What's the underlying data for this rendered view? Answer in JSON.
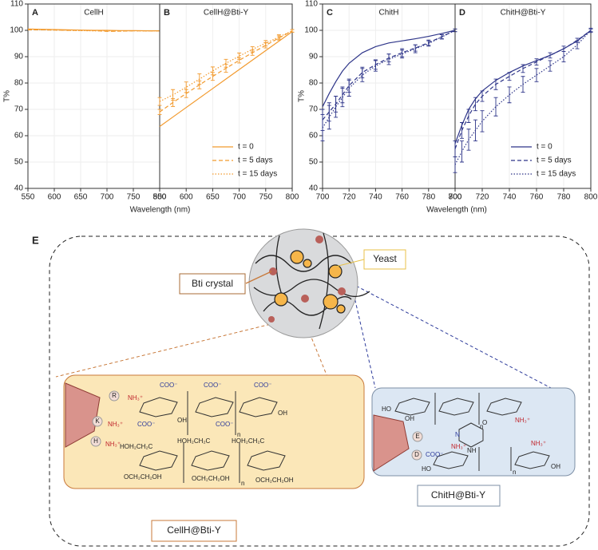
{
  "chart_data": [
    {
      "type": "line",
      "label": "A",
      "title": "CellH",
      "xlabel": "Wavelength (nm)",
      "ylabel": "T%",
      "xlim": [
        550,
        800
      ],
      "ylim": [
        40,
        110
      ],
      "xticks": [
        550,
        600,
        650,
        700,
        750,
        800
      ],
      "yticks": [
        40,
        50,
        60,
        70,
        80,
        90,
        100,
        110
      ],
      "grid": true,
      "x": [
        550,
        575,
        600,
        625,
        650,
        675,
        700,
        725,
        750,
        775,
        800
      ],
      "series": [
        {
          "color": "#f29a2e",
          "dash": "solid",
          "values": [
            100.5,
            100.4,
            100.3,
            100.2,
            100.1,
            100,
            100,
            99.9,
            99.9,
            99.8,
            99.8
          ]
        },
        {
          "color": "#f29a2e",
          "dash": "dashed",
          "values": [
            100.2,
            100.2,
            100.1,
            100,
            100,
            99.9,
            99.6,
            99.7,
            99.8,
            99.8,
            99.8
          ]
        },
        {
          "color": "#f29a2e",
          "dash": "dotted",
          "values": [
            100.3,
            100.2,
            100.1,
            100,
            99.9,
            99.8,
            99.8,
            99.7,
            99.8,
            99.8,
            99.8
          ]
        }
      ]
    },
    {
      "type": "line",
      "label": "B",
      "title": "CellH@Bti-Y",
      "xlim": [
        550,
        800
      ],
      "ylim": [
        40,
        110
      ],
      "xticks": [
        550,
        600,
        650,
        700,
        750,
        800
      ],
      "grid": true,
      "legend": "lower right",
      "x": [
        550,
        575,
        600,
        625,
        650,
        675,
        700,
        725,
        750,
        775,
        800
      ],
      "series": [
        {
          "name": "t = 0",
          "color": "#f29a2e",
          "dash": "solid",
          "values": [
            63.5,
            67.1,
            70.7,
            74.3,
            77.9,
            81.5,
            85.1,
            88.7,
            92.3,
            95.9,
            99.5
          ]
        },
        {
          "name": "t = 5 days",
          "color": "#f29a2e",
          "dash": "dashed",
          "values": [
            69,
            72.6,
            76,
            79.3,
            82.5,
            85.6,
            88.6,
            91.5,
            94.3,
            97.1,
            99.8
          ],
          "errors": [
            1,
            1.5,
            1.5,
            1.5,
            1.5,
            1.5,
            1,
            1,
            1,
            0.8,
            0.5
          ]
        },
        {
          "name": "t = 15 days",
          "color": "#f29a2e",
          "dash": "dotted",
          "values": [
            73,
            75.5,
            78.4,
            81.5,
            84.6,
            87.5,
            90.2,
            92.8,
            95.1,
            97.5,
            99.8
          ],
          "errors": [
            1.5,
            2,
            2,
            2,
            1.5,
            1.5,
            1.2,
            1,
            1,
            0.8,
            0.5
          ]
        }
      ]
    },
    {
      "type": "line",
      "label": "C",
      "title": "ChitH",
      "xlabel": "Wavelength (nm)",
      "ylabel": "T%",
      "xlim": [
        700,
        800
      ],
      "ylim": [
        40,
        110
      ],
      "xticks": [
        700,
        720,
        740,
        760,
        780,
        800
      ],
      "yticks": [
        40,
        50,
        60,
        70,
        80,
        90,
        100,
        110
      ],
      "grid": true,
      "x": [
        700,
        705,
        710,
        715,
        720,
        730,
        740,
        750,
        760,
        770,
        780,
        790,
        800
      ],
      "series": [
        {
          "color": "#2e3589",
          "dash": "solid",
          "values": [
            71,
            76,
            80.5,
            84.5,
            87.5,
            91.5,
            93.8,
            95.2,
            96,
            96.8,
            97.7,
            98.8,
            100
          ]
        },
        {
          "color": "#2e3589",
          "dash": "dashed",
          "values": [
            66,
            69,
            72,
            75.5,
            79,
            84,
            87,
            89.5,
            91.5,
            93.3,
            95.3,
            97.6,
            100
          ],
          "errors": [
            4,
            3.5,
            3,
            3,
            2.5,
            2,
            1.8,
            1.5,
            1.5,
            1.2,
            1,
            0.8,
            0.5
          ]
        },
        {
          "color": "#2e3589",
          "dash": "dotted",
          "values": [
            63,
            67,
            71,
            74.5,
            78,
            83,
            86.5,
            89,
            91,
            93,
            95,
            97.5,
            100
          ],
          "errors": [
            5,
            4.5,
            4,
            3.5,
            3,
            2.5,
            2,
            2,
            1.5,
            1.5,
            1,
            0.8,
            0.5
          ]
        }
      ]
    },
    {
      "type": "line",
      "label": "D",
      "title": "ChitH@Bti-Y",
      "xlim": [
        700,
        800
      ],
      "ylim": [
        40,
        110
      ],
      "xticks": [
        700,
        720,
        740,
        760,
        780,
        800
      ],
      "grid": true,
      "legend": "lower right",
      "x": [
        700,
        705,
        710,
        715,
        720,
        730,
        740,
        750,
        760,
        770,
        780,
        790,
        800
      ],
      "series": [
        {
          "name": "t = 0",
          "color": "#2e3589",
          "dash": "solid",
          "values": [
            57,
            64,
            70,
            74,
            77,
            81,
            84,
            86.5,
            88.5,
            90.5,
            93,
            96,
            100
          ]
        },
        {
          "name": "t = 5 days",
          "color": "#2e3589",
          "dash": "dashed",
          "values": [
            55,
            62,
            67.5,
            72,
            75,
            79.5,
            82.5,
            85.5,
            88,
            90.5,
            93,
            96.2,
            100
          ],
          "errors": [
            3,
            3,
            2.5,
            2.5,
            2,
            2,
            1.5,
            1.5,
            1.2,
            1,
            1,
            0.8,
            0.5
          ]
        },
        {
          "name": "t = 15 days",
          "color": "#2e3589",
          "dash": "dotted",
          "values": [
            49,
            54,
            58.5,
            62,
            65.5,
            71,
            75.5,
            79.5,
            83,
            86.5,
            90,
            94.5,
            100
          ],
          "errors": [
            3,
            4,
            4,
            4,
            4,
            3.5,
            3,
            3,
            2.5,
            2,
            2,
            1.5,
            0.8
          ]
        }
      ]
    }
  ],
  "diagram": {
    "label": "E",
    "bti_crystal": "Bti crystal",
    "yeast": "Yeast",
    "cellh": {
      "title": "CellH@Bti-Y",
      "residues": [
        "R",
        "K",
        "H"
      ],
      "labels": [
        "NH₃⁺",
        "NH₃⁺",
        "NH₃⁺",
        "COO⁻",
        "COO⁻",
        "COO⁻",
        "COO⁻",
        "COO⁻",
        "OH",
        "OH",
        "HOH₂CH₂C",
        "HOH₂CH₂C",
        "HOH₂CH₂C",
        "OCH₂CH₂OH",
        "OCH₂CH₂OH",
        "OCH₂CH₂OH",
        "n",
        "n"
      ]
    },
    "chith": {
      "title": "ChitH@Bti-Y",
      "residues": [
        "E",
        "D"
      ],
      "labels": [
        "COO⁻",
        "NH₃⁺",
        "NH₃⁺",
        "NH₃⁺",
        "HO",
        "HO",
        "OH",
        "OH",
        "N",
        "NH",
        "O",
        "n",
        "n"
      ]
    }
  }
}
